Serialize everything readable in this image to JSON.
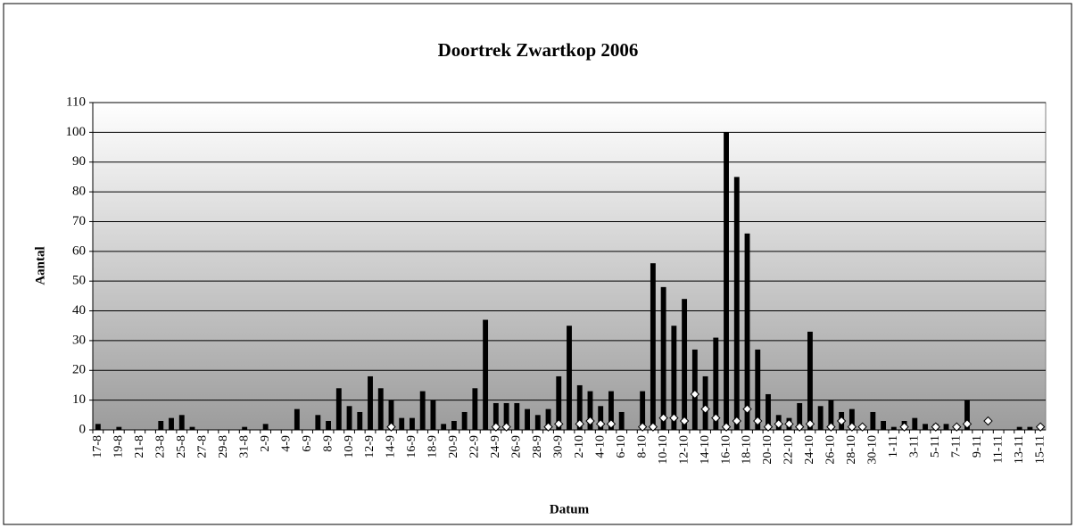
{
  "chart_data": {
    "type": "bar",
    "title": "Doortrek Zwartkop 2006",
    "x_label": "Datum",
    "y_label": "Aantal",
    "categories": [
      "17-8",
      null,
      "19-8",
      null,
      "21-8",
      null,
      "23-8",
      null,
      "25-8",
      null,
      "27-8",
      null,
      "29-8",
      null,
      "31-8",
      null,
      "2-9",
      null,
      "4-9",
      null,
      "6-9",
      null,
      "8-9",
      null,
      "10-9",
      null,
      "12-9",
      null,
      "14-9",
      null,
      "16-9",
      null,
      "18-9",
      null,
      "20-9",
      null,
      "22-9",
      null,
      "24-9",
      null,
      "26-9",
      null,
      "28-9",
      null,
      "30-9",
      null,
      "2-10",
      null,
      "4-10",
      null,
      "6-10",
      null,
      "8-10",
      null,
      "10-10",
      null,
      "12-10",
      null,
      "14-10",
      null,
      "16-10",
      null,
      "18-10",
      null,
      "20-10",
      null,
      "22-10",
      null,
      "24-10",
      null,
      "26-10",
      null,
      "28-10",
      null,
      "30-10",
      null,
      "1-11",
      null,
      "3-11",
      null,
      "5-11",
      null,
      "7-11",
      null,
      "9-11",
      null,
      "11-11",
      null,
      "13-11",
      null,
      "15-11"
    ],
    "series": [
      {
        "type": "bar",
        "color": "#000000",
        "values": [
          2,
          0,
          1,
          0,
          0,
          0,
          3,
          4,
          5,
          1,
          0,
          0,
          0,
          0,
          1,
          0,
          2,
          0,
          0,
          7,
          0,
          5,
          3,
          14,
          8,
          6,
          18,
          14,
          10,
          4,
          4,
          13,
          10,
          2,
          3,
          6,
          14,
          37,
          9,
          9,
          9,
          7,
          5,
          7,
          18,
          35,
          15,
          13,
          8,
          13,
          6,
          0,
          13,
          56,
          48,
          35,
          44,
          27,
          18,
          31,
          100,
          85,
          66,
          27,
          12,
          5,
          4,
          9,
          33,
          8,
          10,
          6,
          7,
          0,
          6,
          3,
          1,
          3,
          4,
          2,
          2,
          2,
          1,
          10,
          0,
          0,
          0,
          0,
          1,
          1,
          0
        ]
      },
      {
        "type": "scatter",
        "color": "#ffffff",
        "values": [
          null,
          null,
          null,
          null,
          null,
          null,
          null,
          null,
          null,
          null,
          null,
          null,
          null,
          null,
          null,
          null,
          null,
          null,
          null,
          null,
          null,
          null,
          null,
          null,
          null,
          null,
          null,
          null,
          1,
          null,
          null,
          null,
          null,
          null,
          null,
          null,
          null,
          null,
          1,
          1,
          null,
          null,
          null,
          1,
          2,
          null,
          2,
          3,
          2,
          2,
          null,
          null,
          1,
          1,
          4,
          4,
          3,
          12,
          7,
          4,
          1,
          3,
          7,
          3,
          1,
          2,
          2,
          1,
          2,
          null,
          1,
          3,
          1,
          1,
          null,
          null,
          null,
          1,
          null,
          null,
          1,
          null,
          1,
          2,
          null,
          3,
          null,
          null,
          null,
          null,
          1
        ]
      }
    ],
    "ylim": [
      0,
      110
    ],
    "yticks": [
      0,
      10,
      20,
      30,
      40,
      50,
      60,
      70,
      80,
      90,
      100,
      110
    ],
    "grid": true
  }
}
